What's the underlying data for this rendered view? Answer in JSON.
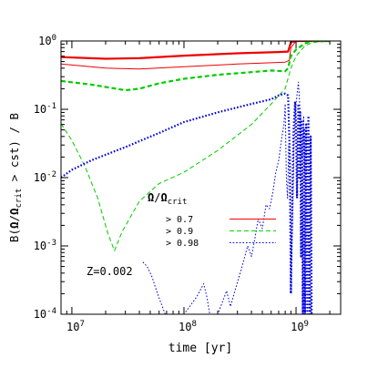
{
  "chart_data": {
    "type": "line",
    "title": "",
    "xlabel": "time [yr]",
    "ylabel": "B(Ω/Ωcrit > cst) / B",
    "ylabel_parts": {
      "pre": "B(",
      "omega": "Ω",
      "sep": "/",
      "crit": "crit",
      "post": " > cst) / B"
    },
    "xscale": "log",
    "yscale": "log",
    "xlim": [
      8000000,
      2500000000
    ],
    "ylim": [
      0.0001,
      1
    ],
    "x_ticks": [
      {
        "value": 10000000,
        "mantissa": "10",
        "exp": "7"
      },
      {
        "value": 100000000,
        "mantissa": "10",
        "exp": "8"
      },
      {
        "value": 1000000000,
        "mantissa": "10",
        "exp": "9"
      }
    ],
    "y_ticks": [
      {
        "value": 1,
        "mantissa": "10",
        "exp": "0"
      },
      {
        "value": 0.1,
        "mantissa": "10",
        "exp": "-1"
      },
      {
        "value": 0.01,
        "mantissa": "10",
        "exp": "-2"
      },
      {
        "value": 0.001,
        "mantissa": "10",
        "exp": "-3"
      },
      {
        "value": 0.0001,
        "mantissa": "10",
        "exp": "-4"
      }
    ],
    "grid": false,
    "annotation": "Z=0.002",
    "legend": {
      "title_omega": "Ω",
      "title_sep": "/",
      "title_omega2": "Ω",
      "title_sub": "crit",
      "placement": "center",
      "entries": [
        {
          "label": "> 0.7",
          "color": "#ff0000",
          "dash": "solid"
        },
        {
          "label": "> 0.9",
          "color": "#00dd00",
          "dash": "dashed"
        },
        {
          "label": "> 0.98",
          "color": "#0000ee",
          "dash": "dotted"
        }
      ]
    },
    "series": [
      {
        "color": "#ee0000",
        "width": 2.2,
        "dash": "solid",
        "points": [
          [
            8000000,
            0.58
          ],
          [
            20000000,
            0.55
          ],
          [
            40000000,
            0.56
          ],
          [
            100000000,
            0.61
          ],
          [
            300000000,
            0.66
          ],
          [
            700000000,
            0.69
          ],
          [
            850000000,
            0.7
          ],
          [
            900000000,
            0.96
          ],
          [
            1000000000,
            1
          ],
          [
            2000000000,
            1
          ]
        ]
      },
      {
        "color": "#ee0000",
        "width": 1,
        "dash": "solid",
        "points": [
          [
            8000000,
            0.46
          ],
          [
            20000000,
            0.4
          ],
          [
            40000000,
            0.39
          ],
          [
            100000000,
            0.42
          ],
          [
            300000000,
            0.46
          ],
          [
            600000000,
            0.48
          ],
          [
            800000000,
            0.49
          ],
          [
            870000000,
            0.52
          ],
          [
            900000000,
            0.8
          ],
          [
            1000000000,
            1
          ],
          [
            2000000000,
            1
          ]
        ]
      },
      {
        "color": "#00cc00",
        "width": 2.2,
        "dash": "dashed",
        "points": [
          [
            8000000,
            0.26
          ],
          [
            15000000,
            0.23
          ],
          [
            30000000,
            0.19
          ],
          [
            40000000,
            0.2
          ],
          [
            60000000,
            0.24
          ],
          [
            100000000,
            0.28
          ],
          [
            200000000,
            0.32
          ],
          [
            400000000,
            0.35
          ],
          [
            600000000,
            0.37
          ],
          [
            800000000,
            0.36
          ],
          [
            850000000,
            0.4
          ],
          [
            900000000,
            0.6
          ],
          [
            1000000000,
            0.75
          ],
          [
            1200000000,
            0.92
          ],
          [
            1400000000,
            1
          ],
          [
            2000000000,
            1
          ]
        ]
      },
      {
        "color": "#00cc00",
        "width": 1,
        "dash": "dashed",
        "points": [
          [
            8000000,
            0.062
          ],
          [
            10000000,
            0.035
          ],
          [
            13000000,
            0.015
          ],
          [
            17000000,
            0.005
          ],
          [
            21000000,
            0.0015
          ],
          [
            24000000,
            0.00085
          ],
          [
            28000000,
            0.0016
          ],
          [
            40000000,
            0.0045
          ],
          [
            60000000,
            0.0082
          ],
          [
            100000000,
            0.012
          ],
          [
            200000000,
            0.025
          ],
          [
            400000000,
            0.06
          ],
          [
            600000000,
            0.12
          ],
          [
            800000000,
            0.2
          ],
          [
            900000000,
            0.4
          ],
          [
            1000000000,
            0.6
          ],
          [
            1200000000,
            0.85
          ],
          [
            1400000000,
            0.95
          ],
          [
            2000000000,
            1
          ]
        ]
      },
      {
        "color": "#0000dd",
        "width": 2.2,
        "dash": "dotted",
        "points": [
          [
            8000000,
            0.01
          ],
          [
            10000000,
            0.013
          ],
          [
            15000000,
            0.018
          ],
          [
            30000000,
            0.028
          ],
          [
            60000000,
            0.045
          ],
          [
            100000000,
            0.065
          ],
          [
            200000000,
            0.09
          ],
          [
            400000000,
            0.12
          ],
          [
            600000000,
            0.14
          ],
          [
            700000000,
            0.16
          ],
          [
            800000000,
            0.17
          ],
          [
            850000000,
            0.16
          ],
          [
            880000000,
            0.02
          ],
          [
            900000000,
            0.0002
          ],
          [
            920000000,
            0.003
          ],
          [
            950000000,
            0.05
          ],
          [
            980000000,
            0.13
          ],
          [
            1000000000,
            0.06
          ],
          [
            1020000000,
            0.005
          ],
          [
            1050000000,
            0.12
          ],
          [
            1070000000,
            0.01
          ],
          [
            1090000000,
            0.09
          ],
          [
            1110000000,
            0.0007
          ],
          [
            1130000000,
            0.07
          ],
          [
            1150000000,
            0.0001
          ],
          [
            1180000000,
            0.05
          ],
          [
            1200000000,
            0.0001
          ],
          [
            1230000000,
            0.06
          ],
          [
            1260000000,
            0.0001
          ],
          [
            1290000000,
            0.08
          ],
          [
            1320000000,
            0.0001
          ],
          [
            1350000000,
            0.04
          ],
          [
            1380000000,
            0.0001
          ]
        ]
      },
      {
        "color": "#0000dd",
        "width": 1,
        "dash": "dotted",
        "points": [
          [
            43000000,
            0.00058
          ],
          [
            47000000,
            0.0005
          ],
          [
            52000000,
            0.00035
          ],
          [
            57000000,
            0.00022
          ],
          [
            62000000,
            0.00015
          ],
          [
            68000000,
            0.0001
          ],
          [
            100000000,
            0.0001
          ],
          [
            130000000,
            0.00018
          ],
          [
            150000000,
            0.00028
          ],
          [
            160000000,
            0.00018
          ],
          [
            170000000,
            0.0001
          ],
          [
            200000000,
            0.0001
          ],
          [
            220000000,
            0.00015
          ],
          [
            240000000,
            0.00022
          ],
          [
            260000000,
            0.00013
          ],
          [
            280000000,
            0.0002
          ],
          [
            310000000,
            0.00035
          ],
          [
            340000000,
            0.0006
          ],
          [
            370000000,
            0.001
          ],
          [
            400000000,
            0.0007
          ],
          [
            430000000,
            0.0013
          ],
          [
            460000000,
            0.0025
          ],
          [
            500000000,
            0.0018
          ],
          [
            540000000,
            0.004
          ],
          [
            580000000,
            0.0035
          ],
          [
            620000000,
            0.006
          ],
          [
            660000000,
            0.012
          ],
          [
            700000000,
            0.018
          ],
          [
            740000000,
            0.035
          ],
          [
            780000000,
            0.06
          ],
          [
            800000000,
            0.12
          ],
          [
            820000000,
            0.01
          ],
          [
            840000000,
            0.005
          ],
          [
            860000000,
            0.03
          ],
          [
            880000000,
            0.01
          ],
          [
            900000000,
            0.0003
          ],
          [
            930000000,
            0.002
          ],
          [
            960000000,
            0.03
          ],
          [
            1000000000,
            0.12
          ],
          [
            1050000000,
            0.25
          ],
          [
            1100000000,
            0.07
          ],
          [
            1130000000,
            0.02
          ],
          [
            1170000000,
            0.08
          ],
          [
            1200000000,
            0.01
          ],
          [
            1250000000,
            0.003
          ],
          [
            1300000000,
            0.001
          ],
          [
            1330000000,
            0.0004
          ],
          [
            1360000000,
            0.0001
          ]
        ]
      }
    ]
  }
}
